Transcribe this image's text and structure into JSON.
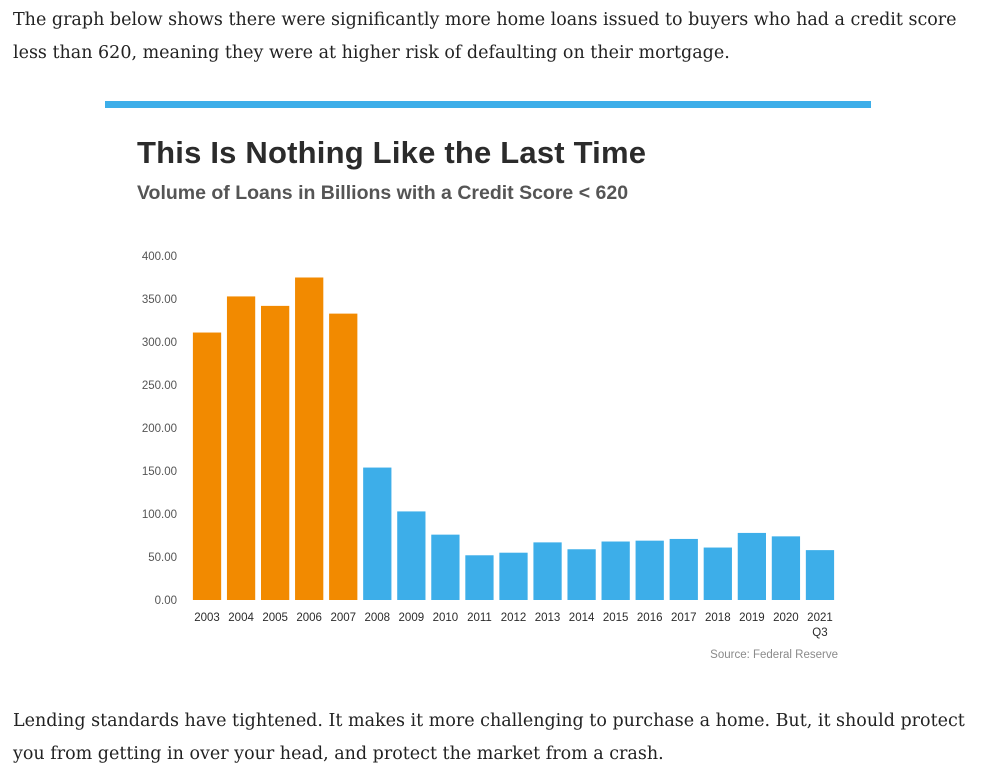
{
  "article": {
    "intro": "The graph below shows there were significantly more home loans issued to buyers who had a credit score less than 620, meaning they were at higher risk of defaulting on their mortgage.",
    "outro": "Lending standards have tightened. It makes it more challenging to purchase a home. But, it should protect you from getting in over your head, and protect the market from a crash."
  },
  "chart_data": {
    "type": "bar",
    "title": "This Is Nothing Like the Last Time",
    "subtitle": "Volume of Loans in Billions with a Credit Score < 620",
    "xlabel": "",
    "ylabel": "",
    "ylim": [
      0,
      400
    ],
    "yticks": [
      "0.00",
      "50.00",
      "100.00",
      "150.00",
      "200.00",
      "250.00",
      "300.00",
      "350.00",
      "400.00"
    ],
    "grid": false,
    "categories": [
      "2003",
      "2004",
      "2005",
      "2006",
      "2007",
      "2008",
      "2009",
      "2010",
      "2011",
      "2012",
      "2013",
      "2014",
      "2015",
      "2016",
      "2017",
      "2018",
      "2019",
      "2020",
      "2021 Q3"
    ],
    "values": [
      311,
      353,
      342,
      375,
      333,
      154,
      103,
      76,
      52,
      55,
      67,
      59,
      68,
      69,
      71,
      61,
      78,
      74,
      58
    ],
    "colors": [
      "#f28a00",
      "#f28a00",
      "#f28a00",
      "#f28a00",
      "#f28a00",
      "#3daee9",
      "#3daee9",
      "#3daee9",
      "#3daee9",
      "#3daee9",
      "#3daee9",
      "#3daee9",
      "#3daee9",
      "#3daee9",
      "#3daee9",
      "#3daee9",
      "#3daee9",
      "#3daee9",
      "#3daee9"
    ],
    "source": "Source: Federal Reserve"
  },
  "colors": {
    "accent": "#3daee9",
    "highlight": "#f28a00"
  }
}
